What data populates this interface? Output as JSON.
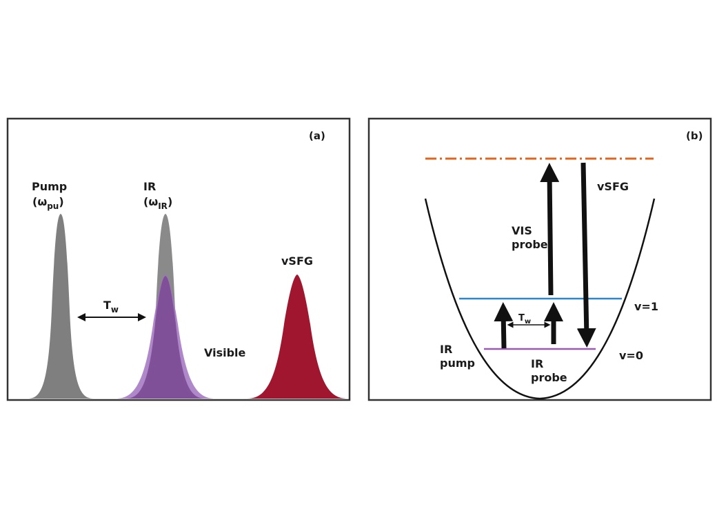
{
  "panel_a": {
    "tag": "(a)",
    "pump_label": "Pump",
    "pump_omega": "(ω",
    "pump_sub": "pu",
    "pump_close": ")",
    "ir_label": "IR",
    "ir_omega": "(ω",
    "ir_sub": "IR",
    "ir_close": ")",
    "tw_main": "T",
    "tw_sub": "w",
    "visible_label": "Visible",
    "vsfg_label": "vSFG",
    "colors": {
      "pump": "#7f7f7f",
      "ir": "#8a8a8a",
      "visible_light": "#a173c0",
      "visible_dark": "#7b4a93",
      "vsfg": "#a0162e"
    }
  },
  "panel_b": {
    "tag": "(b)",
    "vsfg_label": "vSFG",
    "vis_probe_line1": "VIS",
    "vis_probe_line2": "probe",
    "v1_label": "v=1",
    "v0_label": "v=0",
    "ir_pump_line1": "IR",
    "ir_pump_line2": "pump",
    "ir_probe_line1": "IR",
    "ir_probe_line2": "probe",
    "tw_main": "T",
    "tw_sub": "w",
    "colors": {
      "virtual_level": "#e0641e",
      "v1_level": "#2b86c9",
      "v0_level": "#9b59b6"
    }
  }
}
